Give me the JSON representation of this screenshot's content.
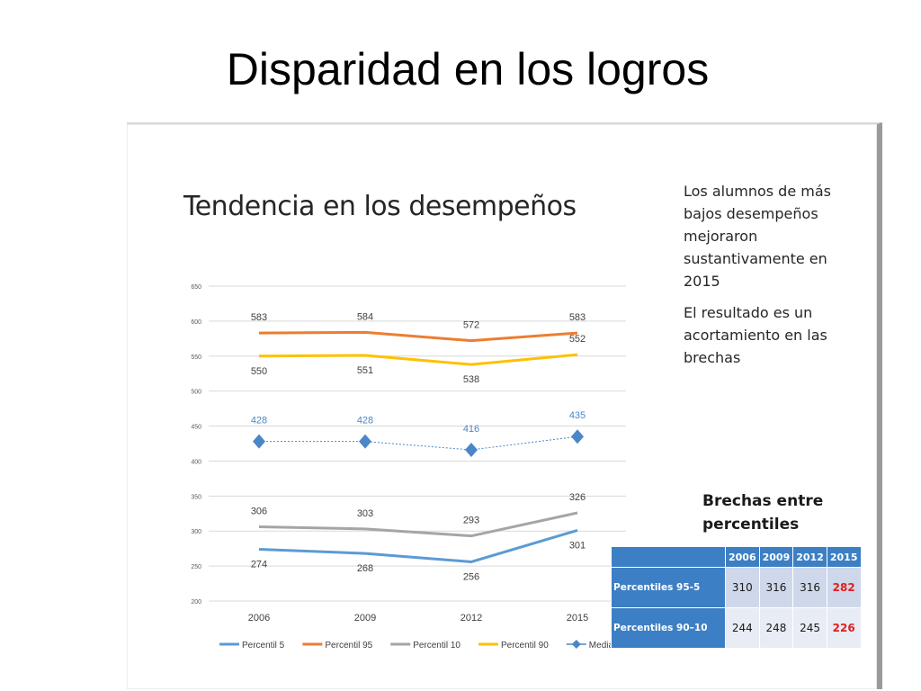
{
  "slide": {
    "title": "Disparidad en los logros"
  },
  "side_note": {
    "para1": "Los alumnos de más bajos desempeños mejoraron sustantivamente en 2015",
    "para2": "El resultado es un acortamiento en las brechas"
  },
  "gap_table": {
    "title": "Brechas entre percentiles",
    "header": [
      "2006",
      "2009",
      "2012",
      "2015"
    ],
    "rows": [
      {
        "label": "Percentiles 95-5",
        "values": [
          "310",
          "316",
          "316",
          "282"
        ]
      },
      {
        "label": "Percentiles 90–10",
        "values": [
          "244",
          "248",
          "245",
          "226"
        ]
      }
    ],
    "highlight_color": "#e02020"
  },
  "chart_data": {
    "type": "line",
    "title": "Tendencia en los desempeños",
    "x": [
      "2006",
      "2009",
      "2012",
      "2015"
    ],
    "ylim": [
      200,
      650
    ],
    "yticks": [
      200,
      250,
      300,
      350,
      400,
      450,
      500,
      550,
      600,
      650
    ],
    "grid": true,
    "legend_position": "bottom",
    "series": [
      {
        "name": "Percentil 5",
        "values": [
          274,
          268,
          256,
          301
        ],
        "color": "#5b9bd5",
        "marker": "none"
      },
      {
        "name": "Percentil 95",
        "values": [
          583,
          584,
          572,
          583
        ],
        "color": "#ed7d31",
        "marker": "none"
      },
      {
        "name": "Percentil 10",
        "values": [
          306,
          303,
          293,
          326
        ],
        "color": "#a5a5a5",
        "marker": "none"
      },
      {
        "name": "Percentil 90",
        "values": [
          550,
          551,
          538,
          552
        ],
        "color": "#ffc000",
        "marker": "none"
      },
      {
        "name": "Media",
        "values": [
          428,
          428,
          416,
          435
        ],
        "color": "#4a86c8",
        "marker": "diamond"
      }
    ]
  }
}
